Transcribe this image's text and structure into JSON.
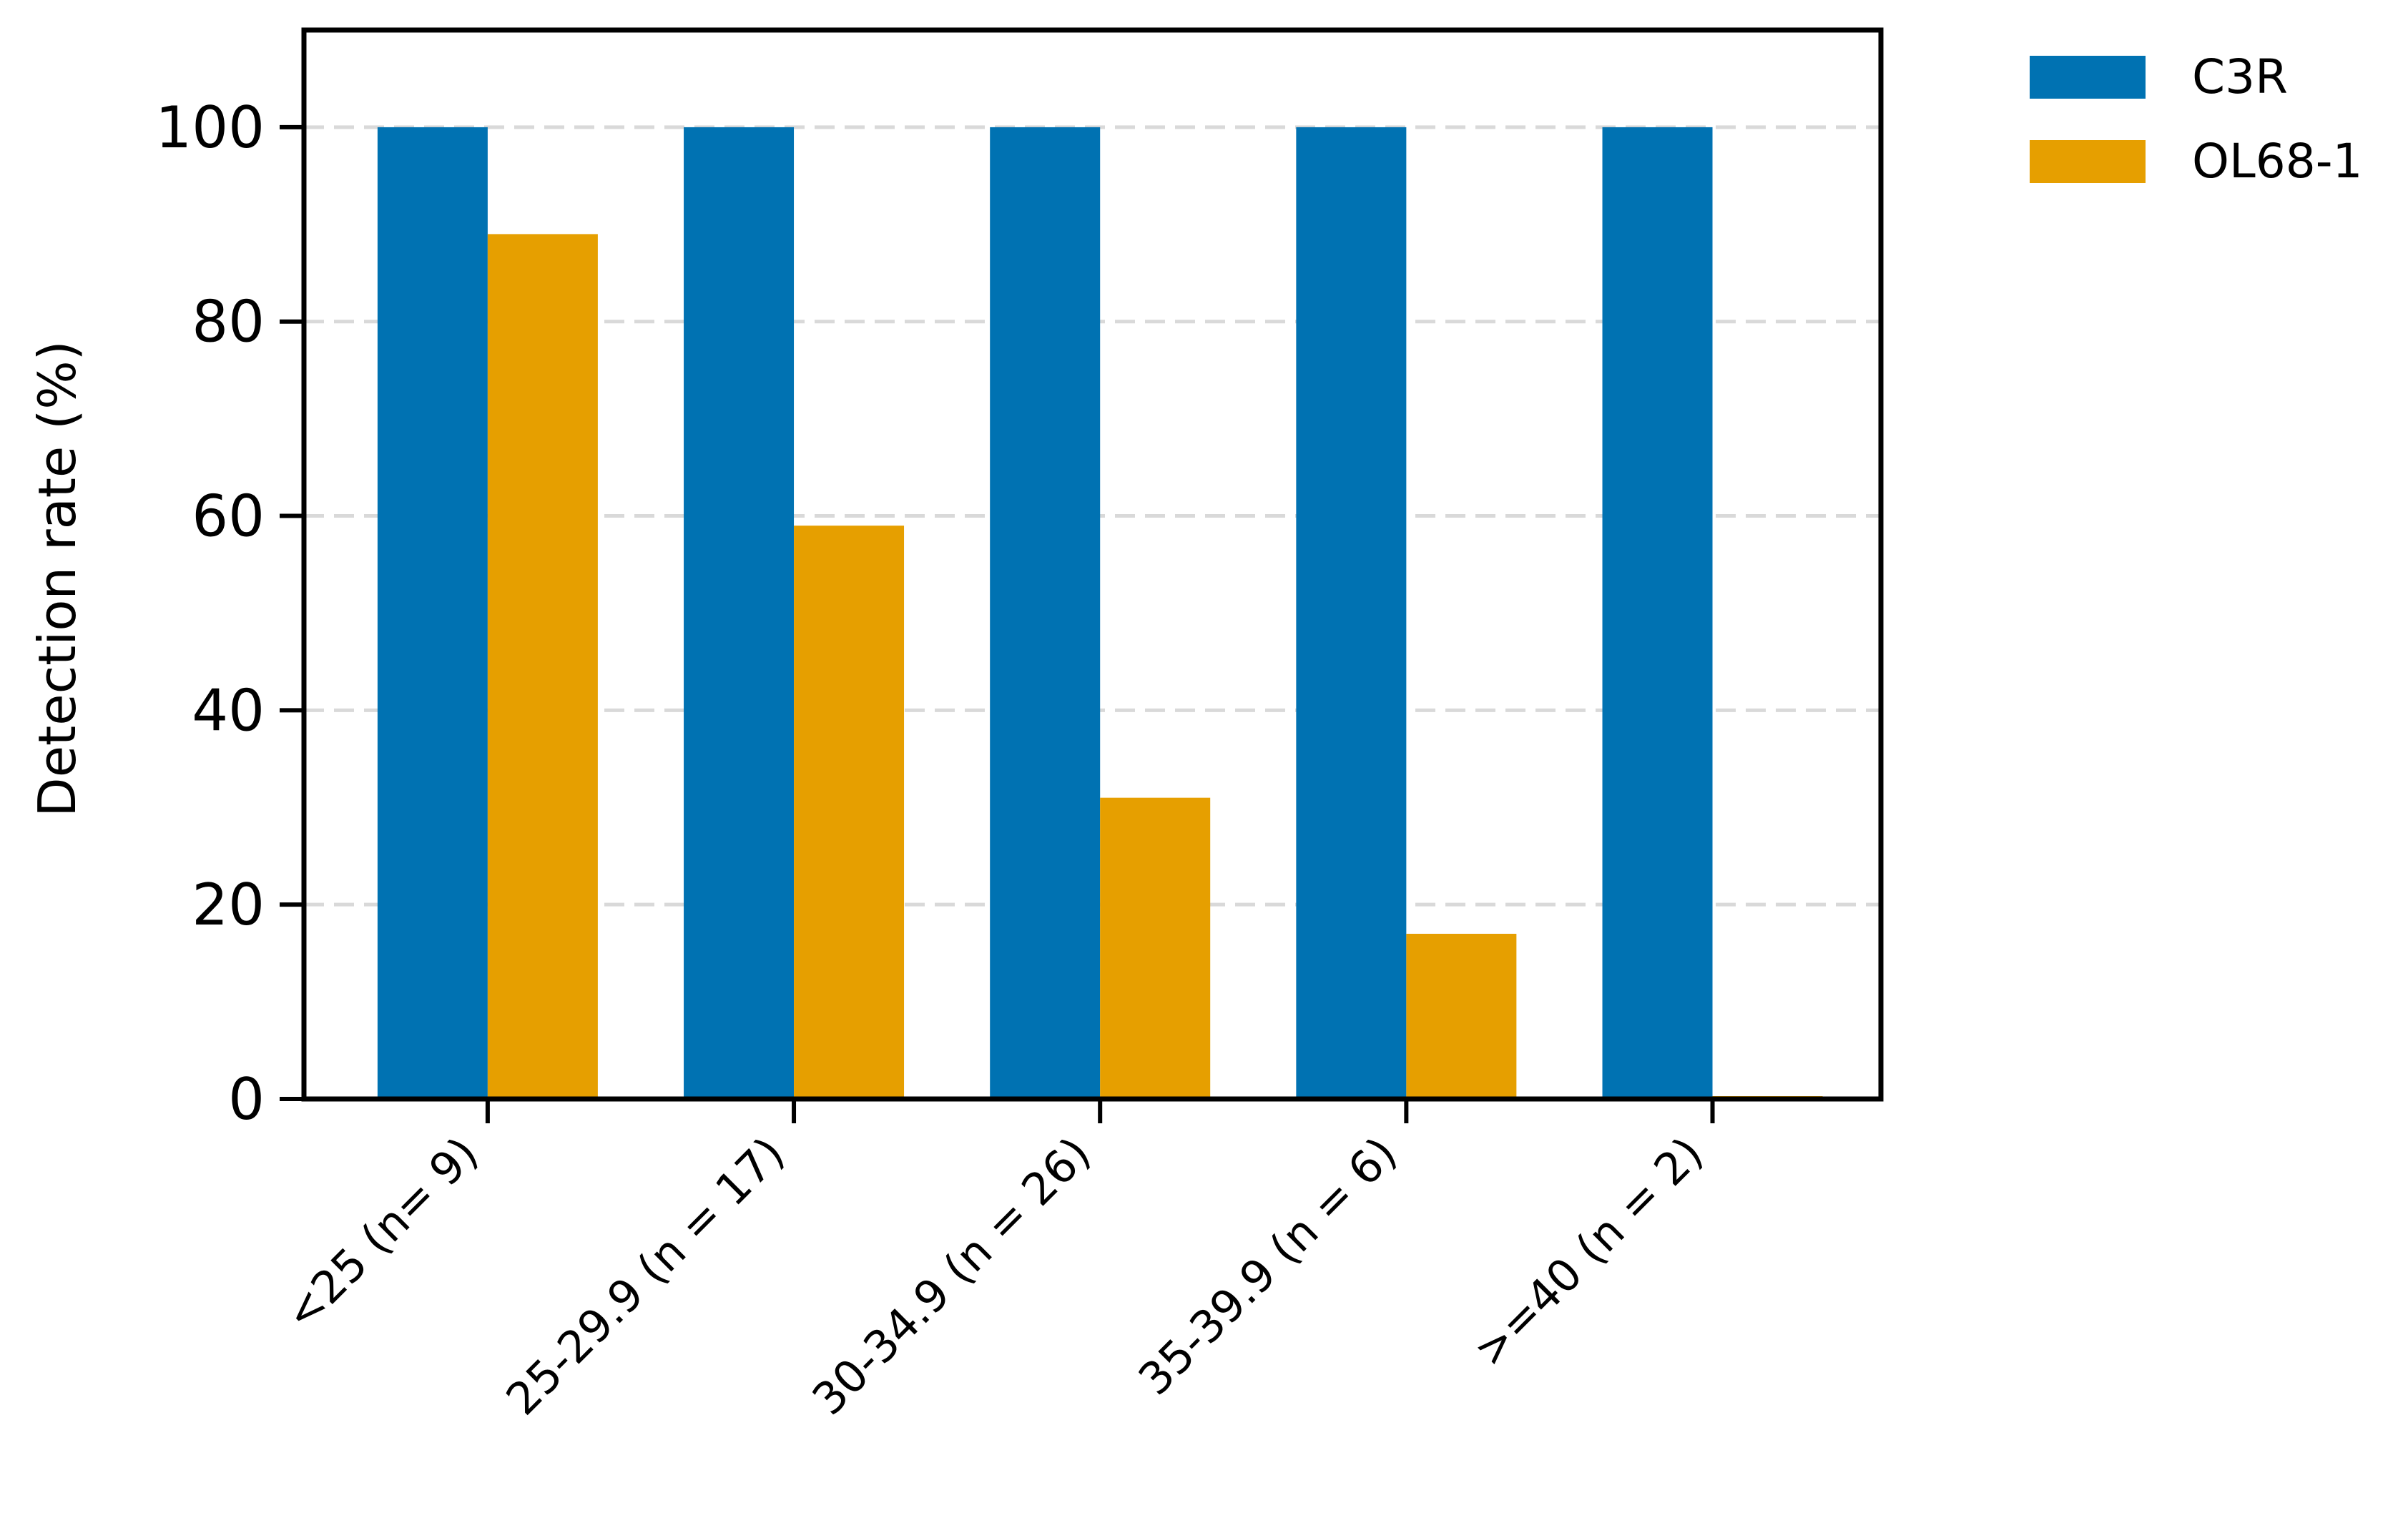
{
  "chart_data": {
    "type": "bar",
    "title": "",
    "xlabel": "",
    "ylabel": "Detection rate (%)",
    "ylim": [
      0,
      110
    ],
    "yticks": [
      0,
      20,
      40,
      60,
      80,
      100
    ],
    "ytick_labels": [
      "0",
      "20",
      "40",
      "60",
      "80",
      "100"
    ],
    "grid": {
      "y": true,
      "style": "dashed"
    },
    "legend": {
      "placement": "outside-top-right"
    },
    "categories": [
      "<25 (n= 9)",
      "25-29.9 (n = 17)",
      "30-34.9 (n = 26)",
      "35-39.9 (n = 6)",
      ">=40 (n = 2)"
    ],
    "series": [
      {
        "name": "C3R",
        "color": "#0072B2",
        "values": [
          100,
          100,
          100,
          100,
          100
        ]
      },
      {
        "name": "OL68-1",
        "color": "#E69F00",
        "values": [
          89,
          59,
          31,
          17,
          0
        ]
      }
    ]
  }
}
